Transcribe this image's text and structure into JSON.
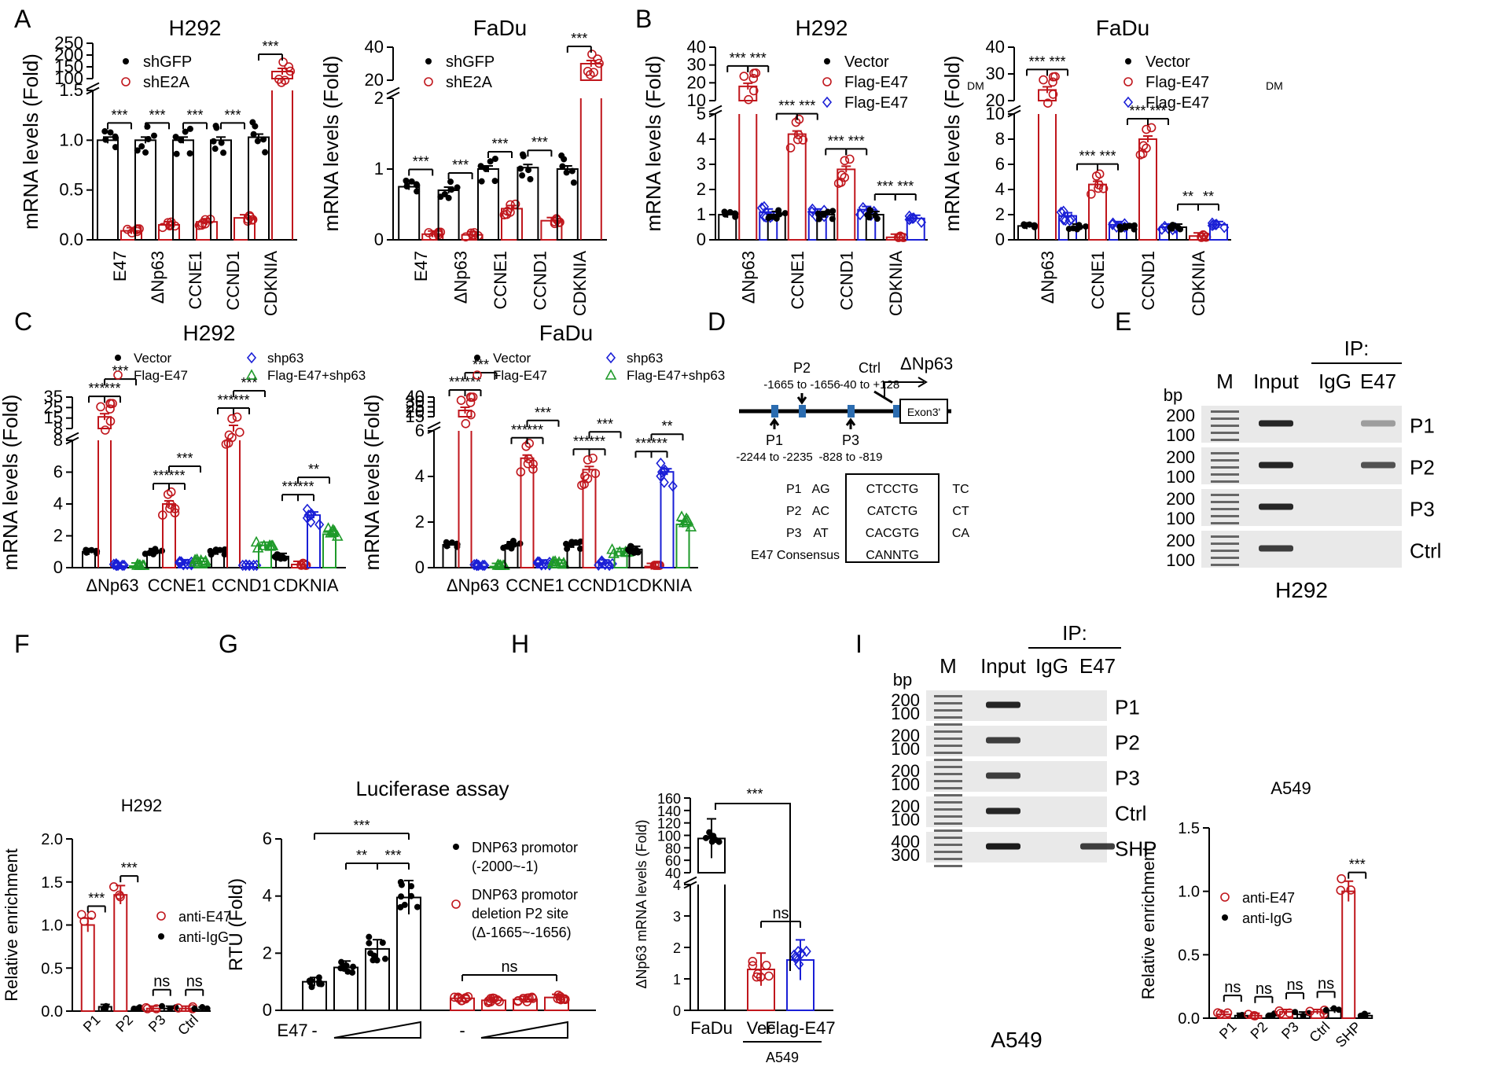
{
  "colors": {
    "black": "#000000",
    "red": "#c0161c",
    "blue": "#1a1fd6",
    "green": "#1f9a2a",
    "grey": "#444444"
  },
  "panel_labels": {
    "A": "A",
    "B": "B",
    "C": "C",
    "D": "D",
    "E": "E",
    "F": "F",
    "G": "G",
    "H": "H",
    "I": "I"
  },
  "chart_data": [
    {
      "id": "A1",
      "type": "bar",
      "title": "H292",
      "ylabel": "mRNA levels (Fold)",
      "categories": [
        "E47",
        "ΔNp63",
        "CCNE1",
        "CCND1",
        "CDKNIA"
      ],
      "series": [
        {
          "name": "shGFP",
          "values": [
            1.0,
            1.0,
            1.0,
            1.0,
            1.03
          ]
        },
        {
          "name": "shE2A",
          "values": [
            0.09,
            0.15,
            0.18,
            0.22,
            130
          ]
        }
      ],
      "lower_ylim": [
        0,
        1.5
      ],
      "lower_ticks": [
        "0.0",
        "0.5",
        "1.0",
        "1.5"
      ],
      "upper_ylim": [
        100,
        250
      ],
      "upper_ticks": [
        "100",
        "150",
        "200",
        "250"
      ],
      "sig": [
        "***",
        "***",
        "***",
        "***",
        "***"
      ]
    },
    {
      "id": "A2",
      "type": "bar",
      "title": "FaDu",
      "ylabel": "mRNA levels (Fold)",
      "categories": [
        "E47",
        "ΔNp63",
        "CCNE1",
        "CCND1",
        "CDKNIA"
      ],
      "series": [
        {
          "name": "shGFP",
          "values": [
            0.75,
            0.7,
            1.0,
            1.02,
            1.0
          ]
        },
        {
          "name": "shE2A",
          "values": [
            0.08,
            0.07,
            0.44,
            0.27,
            30
          ]
        }
      ],
      "lower_ylim": [
        0,
        2
      ],
      "lower_ticks": [
        "0",
        "1",
        "2"
      ],
      "upper_ylim": [
        20,
        40
      ],
      "upper_ticks": [
        "20",
        "40"
      ],
      "sig": [
        "***",
        "***",
        "***",
        "***",
        "***"
      ]
    },
    {
      "id": "B1",
      "type": "bar",
      "title": "H292",
      "ylabel": "mRNA levels (Fold)",
      "categories": [
        "ΔNp63",
        "CCNE1",
        "CCND1",
        "CDKNIA"
      ],
      "series": [
        {
          "name": "Vector",
          "values": [
            1.0,
            1.0,
            1.0,
            1.0
          ]
        },
        {
          "name": "Flag-E47",
          "values": [
            18,
            4.2,
            2.8,
            0.1
          ]
        },
        {
          "name": "Flag-E47DM",
          "values": [
            1.1,
            1.1,
            1.2,
            0.85
          ]
        }
      ],
      "lower_ylim": [
        0,
        5
      ],
      "lower_ticks": [
        "0",
        "1",
        "2",
        "3",
        "4",
        "5"
      ],
      "upper_ylim": [
        10,
        40
      ],
      "upper_ticks": [
        "10",
        "20",
        "30",
        "40"
      ],
      "sig": [
        [
          "***",
          "***"
        ],
        [
          "***",
          "***"
        ],
        [
          "***",
          "***"
        ],
        [
          "***",
          "***"
        ]
      ]
    },
    {
      "id": "B2",
      "type": "bar",
      "title": "FaDu",
      "ylabel": "mRNA levels (Fold)",
      "categories": [
        "ΔNp63",
        "CCNE1",
        "CCND1",
        "CDKNIA"
      ],
      "series": [
        {
          "name": "Vector",
          "values": [
            1.1,
            1.0,
            1.0,
            1.0
          ]
        },
        {
          "name": "Flag-E47",
          "values": [
            24,
            4.4,
            8.0,
            0.3
          ]
        },
        {
          "name": "Flag-E47DM",
          "values": [
            1.9,
            1.2,
            1.0,
            1.2
          ]
        }
      ],
      "lower_ylim": [
        0,
        10
      ],
      "lower_ticks": [
        "0",
        "2",
        "4",
        "6",
        "8",
        "10"
      ],
      "upper_ylim": [
        20,
        40
      ],
      "upper_ticks": [
        "20",
        "30",
        "40"
      ],
      "sig": [
        [
          "***",
          "***"
        ],
        [
          "***",
          "***"
        ],
        [
          "***",
          "***"
        ],
        [
          "**",
          "**"
        ]
      ]
    },
    {
      "id": "C1",
      "type": "bar",
      "title": "H292",
      "ylabel": "mRNA levels (Fold)",
      "categories": [
        "ΔNp63",
        "CCNE1",
        "CCND1",
        "CDKNIA"
      ],
      "series": [
        {
          "name": "Vector",
          "values": [
            1.0,
            1.0,
            1.0,
            0.7
          ]
        },
        {
          "name": "Flag-E47",
          "values": [
            18,
            4.0,
            8.0,
            0.2
          ]
        },
        {
          "name": "shp63",
          "values": [
            0.1,
            0.3,
            0.05,
            3.3
          ]
        },
        {
          "name": "Flag-E47+shp63",
          "values": [
            0.1,
            0.4,
            1.4,
            2.1
          ]
        }
      ],
      "lower_ylim": [
        0,
        8
      ],
      "lower_ticks": [
        "0",
        "2",
        "4",
        "6",
        "8"
      ],
      "upper_ylim": [
        8,
        35
      ],
      "upper_ticks": [
        "8",
        "15",
        "25",
        "35"
      ],
      "sig": [
        [
          "***",
          "***",
          "***"
        ],
        [
          "***",
          "***",
          "***"
        ],
        [
          "***",
          "***",
          "***"
        ],
        [
          "***",
          "***",
          "**"
        ]
      ]
    },
    {
      "id": "C2",
      "type": "bar",
      "title": "FaDu",
      "ylabel": "mRNA levels (Fold)",
      "categories": [
        "ΔNp63",
        "CCNE1",
        "CCND1",
        "CDKNIA"
      ],
      "series": [
        {
          "name": "Vector",
          "values": [
            1.0,
            1.0,
            1.0,
            0.8
          ]
        },
        {
          "name": "Flag-E47",
          "values": [
            23,
            4.8,
            4.3,
            0.05
          ]
        },
        {
          "name": "shp63",
          "values": [
            0.05,
            0.2,
            0.2,
            4.2
          ]
        },
        {
          "name": "Flag-E47+shp63",
          "values": [
            0.05,
            0.2,
            0.7,
            1.9
          ]
        }
      ],
      "lower_ylim": [
        0,
        6
      ],
      "lower_ticks": [
        "0",
        "2",
        "4",
        "6"
      ],
      "upper_ylim": [
        15,
        40
      ],
      "upper_ticks": [
        "15",
        "20",
        "25",
        "30",
        "40"
      ],
      "sig": [
        [
          "***",
          "***",
          "***"
        ],
        [
          "***",
          "***",
          "***"
        ],
        [
          "***",
          "***",
          "***"
        ],
        [
          "***",
          "***",
          "**"
        ]
      ]
    },
    {
      "id": "F",
      "type": "bar",
      "title": "H292",
      "ylabel": "Relative enrichment",
      "categories": [
        "P1",
        "P2",
        "P3",
        "Ctrl"
      ],
      "series": [
        {
          "name": "anti-E47",
          "values": [
            1.0,
            1.35,
            0.03,
            0.03
          ]
        },
        {
          "name": "anti-IgG",
          "values": [
            0.05,
            0.02,
            0.03,
            0.02
          ]
        }
      ],
      "ylim": [
        0,
        2.0
      ],
      "ticks": [
        "0.0",
        "0.5",
        "1.0",
        "1.5",
        "2.0"
      ],
      "sig": [
        "***",
        "***",
        "ns",
        "ns"
      ]
    },
    {
      "id": "G",
      "type": "bar",
      "title": "Luciferase assay",
      "ylabel": "RTU (Fold)",
      "groups": [
        "DNP63 promotor (-2000~-1)",
        "DNP63 promotor deletion P2 site (Δ-1665~-1656)"
      ],
      "series": [
        {
          "name": "DNP63 promotor (-2000~-1)",
          "values": [
            1.0,
            1.5,
            2.15,
            3.95
          ]
        },
        {
          "name": "DNP63 promotor deletion P2 site (Δ-1665~-1656)",
          "values": [
            0.42,
            0.35,
            0.38,
            0.45
          ]
        }
      ],
      "ylim": [
        0,
        6
      ],
      "ticks": [
        "0",
        "2",
        "4",
        "6"
      ],
      "xlabel": "E47",
      "dose_minus": "-",
      "sig": [
        "***",
        "**",
        "***",
        "ns"
      ]
    },
    {
      "id": "H",
      "type": "bar",
      "ylabel": "ΔNp63 mRNA levels (Fold)",
      "categories": [
        "FaDu",
        "Vec",
        "Flag-E47"
      ],
      "values": [
        95,
        1.3,
        1.6
      ],
      "lower_ylim": [
        0,
        4
      ],
      "lower_ticks": [
        "0",
        "1",
        "2",
        "3",
        "4"
      ],
      "upper_ylim": [
        40,
        160
      ],
      "upper_ticks": [
        "40",
        "60",
        "80",
        "100",
        "120",
        "140",
        "160"
      ],
      "group_label": "A549",
      "sig": [
        "***",
        "ns"
      ]
    },
    {
      "id": "I",
      "type": "bar",
      "title": "A549",
      "ylabel": "Relative enrichment",
      "categories": [
        "P1",
        "P2",
        "P3",
        "Ctrl",
        "SHP"
      ],
      "series": [
        {
          "name": "anti-E47",
          "values": [
            0.03,
            0.02,
            0.05,
            0.05,
            1.0
          ]
        },
        {
          "name": "anti-IgG",
          "values": [
            0.02,
            0.02,
            0.03,
            0.06,
            0.02
          ]
        }
      ],
      "ylim": [
        0,
        1.5
      ],
      "ticks": [
        "0.0",
        "0.5",
        "1.0",
        "1.5"
      ],
      "sig": [
        "ns",
        "ns",
        "ns",
        "ns",
        "***"
      ]
    }
  ],
  "legends": {
    "A": [
      "shGFP",
      "shE2A"
    ],
    "B": [
      "Vector",
      "Flag-E47",
      "Flag-E47"
    ],
    "B_sup": "DM",
    "C": [
      "Vector",
      "Flag-E47",
      "shp63",
      "Flag-E47+shp63"
    ],
    "F": [
      "anti-E47",
      "anti-IgG"
    ],
    "G": [
      "DNP63 promotor",
      "(-2000~-1)",
      "DNP63 promotor",
      "deletion P2 site",
      "(Δ-1665~-1656)"
    ],
    "I": [
      "anti-E47",
      "anti-IgG"
    ]
  },
  "diagram_D": {
    "gene": "ΔNp63",
    "exon": "Exon3'",
    "sites": [
      {
        "name": "P2",
        "range": "-1665 to -1656"
      },
      {
        "name": "Ctrl",
        "range": "-40 to +128"
      },
      {
        "name": "P1",
        "range": "-2244 to -2235"
      },
      {
        "name": "P3",
        "range": "-828 to -819"
      }
    ],
    "table": [
      {
        "name": "P1",
        "left": "AG",
        "core": "CTCCTG",
        "right": "TC"
      },
      {
        "name": "P2",
        "left": "AC",
        "core": "CATCTG",
        "right": "CT"
      },
      {
        "name": "P3",
        "left": "AT",
        "core": "CACGTG",
        "right": "CA"
      },
      {
        "name": "E47 Consensus",
        "left": "",
        "core": "CANNTG",
        "right": ""
      }
    ]
  },
  "gel_E": {
    "ip_label": "IP:",
    "lanes": [
      "M",
      "Input",
      "IgG",
      "E47"
    ],
    "bp_label": "bp",
    "rows": [
      {
        "label": "P1",
        "top": "200",
        "bottom": "100"
      },
      {
        "label": "P2",
        "top": "200",
        "bottom": "100"
      },
      {
        "label": "P3",
        "top": "200",
        "bottom": "100"
      },
      {
        "label": "Ctrl",
        "top": "200",
        "bottom": "100"
      }
    ],
    "cell": "H292"
  },
  "gel_I": {
    "ip_label": "IP:",
    "lanes": [
      "M",
      "Input",
      "IgG",
      "E47"
    ],
    "bp_label": "bp",
    "rows": [
      {
        "label": "P1",
        "top": "200",
        "bottom": "100"
      },
      {
        "label": "P2",
        "top": "200",
        "bottom": "100"
      },
      {
        "label": "P3",
        "top": "200",
        "bottom": "100"
      },
      {
        "label": "Ctrl",
        "top": "200",
        "bottom": "100"
      },
      {
        "label": "SHP",
        "top": "400",
        "bottom": "300"
      }
    ],
    "cell": "A549"
  }
}
